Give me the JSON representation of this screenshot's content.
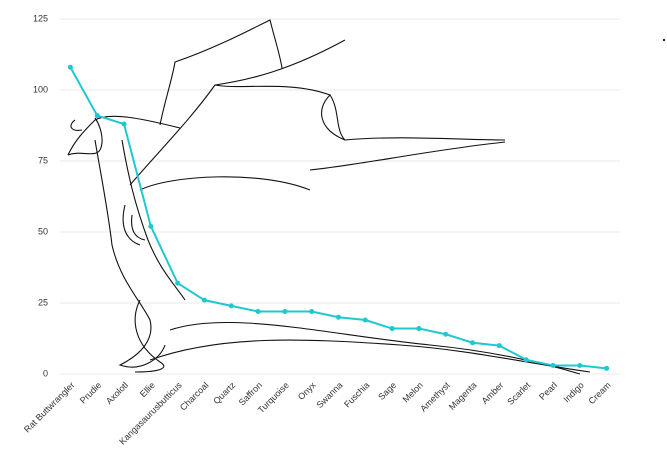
{
  "chart_data": {
    "type": "line",
    "categories": [
      "Rat Buttwrangler",
      "Prudie",
      "Axolotl",
      "Ellie",
      "Kangasaurusbutticus",
      "Charcoal",
      "Quartz",
      "Saffron",
      "Turquoise",
      "Onyx",
      "Swanna",
      "Fuschia",
      "Sage",
      "Melon",
      "Amethyst",
      "Magenta",
      "Amber",
      "Scarlet",
      "Pearl",
      "Indigo",
      "Cream"
    ],
    "values": [
      108,
      91,
      88,
      52,
      32,
      26,
      24,
      22,
      22,
      22,
      20,
      19,
      16,
      16,
      14,
      11,
      10,
      5,
      3,
      3,
      2
    ],
    "color": "#1fc8cf",
    "ylim": [
      0,
      125
    ],
    "yticks": [
      0,
      25,
      50,
      75,
      100,
      125
    ],
    "grid": true
  }
}
